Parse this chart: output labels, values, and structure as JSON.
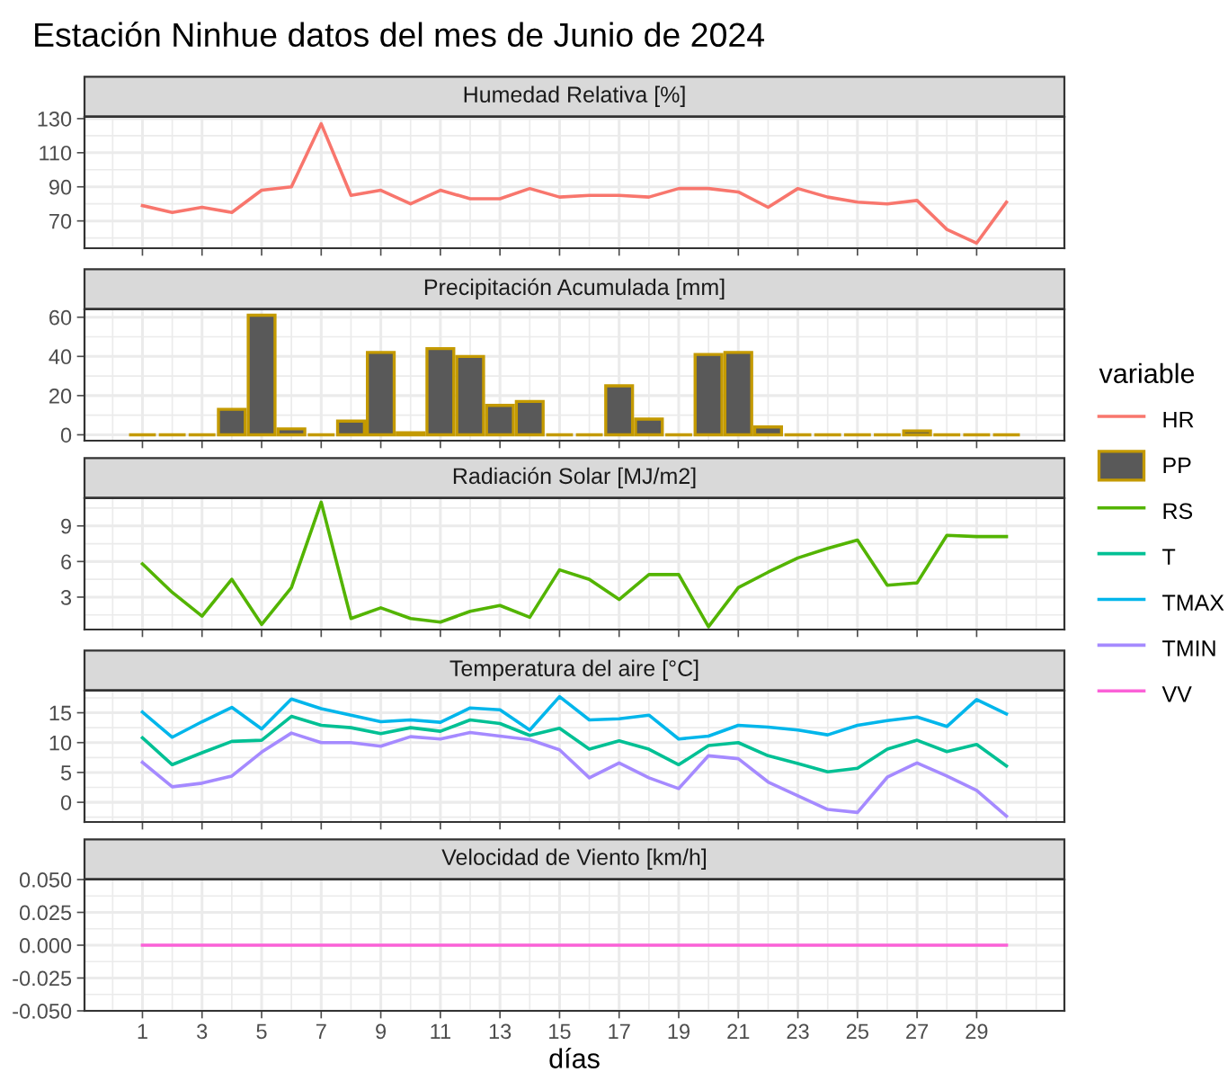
{
  "chart_data": [
    {
      "type": "line",
      "title": "Estación Ninhue datos del mes de Junio de 2024",
      "subtitle": "Humedad Relativa [%]",
      "legend": "right",
      "legend_title": "variable",
      "grid": true,
      "tick_labels": "y",
      "x": [
        1,
        2,
        3,
        4,
        5,
        6,
        7,
        8,
        9,
        10,
        11,
        12,
        13,
        14,
        15,
        16,
        17,
        18,
        19,
        20,
        21,
        22,
        23,
        24,
        25,
        26,
        27,
        28,
        29,
        30
      ],
      "xlim": [
        -0.945,
        31.945
      ],
      "xticks": [
        1,
        3,
        5,
        7,
        9,
        11,
        13,
        15,
        17,
        19,
        21,
        23,
        25,
        27,
        29
      ],
      "ylim": [
        54,
        131
      ],
      "yticks": [
        70,
        90,
        110,
        130
      ],
      "series": [
        {
          "name": "HR",
          "color": "#f8766d",
          "values": [
            79,
            75,
            78,
            75,
            88,
            90,
            127,
            85,
            88,
            80,
            88,
            83,
            83,
            89,
            84,
            85,
            85,
            84,
            89,
            89,
            87,
            78,
            89,
            84,
            81,
            80,
            82,
            65,
            57,
            81
          ]
        }
      ]
    },
    {
      "type": "bar",
      "subtitle": "Precipitación Acumulada [mm]",
      "legend": "right",
      "grid": true,
      "tick_labels": "y",
      "x": [
        1,
        2,
        3,
        4,
        5,
        6,
        7,
        8,
        9,
        10,
        11,
        12,
        13,
        14,
        15,
        16,
        17,
        18,
        19,
        20,
        21,
        22,
        23,
        24,
        25,
        26,
        27,
        28,
        29,
        30
      ],
      "xlim": [
        -0.945,
        31.945
      ],
      "xticks": [
        1,
        3,
        5,
        7,
        9,
        11,
        13,
        15,
        17,
        19,
        21,
        23,
        25,
        27,
        29
      ],
      "ylim": [
        -3,
        64
      ],
      "yticks": [
        0,
        20,
        40,
        60
      ],
      "series": [
        {
          "name": "PP",
          "color": "#c49a00",
          "values": [
            0,
            0,
            0,
            13,
            61,
            3,
            0,
            7,
            42,
            1,
            44,
            40,
            15,
            17,
            0,
            0,
            25,
            8,
            0,
            41,
            42,
            4,
            0,
            0,
            0,
            0,
            2,
            0,
            0,
            0
          ]
        }
      ]
    },
    {
      "type": "line",
      "subtitle": "Radiación Solar [MJ/m2]",
      "legend": "right",
      "grid": true,
      "tick_labels": "y",
      "x": [
        1,
        2,
        3,
        4,
        5,
        6,
        7,
        8,
        9,
        10,
        11,
        12,
        13,
        14,
        15,
        16,
        17,
        18,
        19,
        20,
        21,
        22,
        23,
        24,
        25,
        26,
        27,
        28,
        29,
        30
      ],
      "xlim": [
        -0.945,
        31.945
      ],
      "xticks": [
        1,
        3,
        5,
        7,
        9,
        11,
        13,
        15,
        17,
        19,
        21,
        23,
        25,
        27,
        29
      ],
      "ylim": [
        0.27,
        11.33
      ],
      "yticks": [
        3,
        6,
        9
      ],
      "series": [
        {
          "name": "RS",
          "color": "#53b400",
          "values": [
            5.8,
            3.4,
            1.4,
            4.5,
            0.7,
            3.8,
            11,
            1.2,
            2.1,
            1.2,
            0.9,
            1.8,
            2.3,
            1.3,
            5.3,
            4.5,
            2.8,
            4.9,
            4.9,
            0.5,
            3.8,
            5.1,
            6.3,
            7.1,
            7.8,
            4.0,
            4.2,
            8.2,
            8.1,
            8.1
          ]
        }
      ]
    },
    {
      "type": "line",
      "subtitle": "Temperatura del aire [°C]",
      "legend": "right",
      "grid": true,
      "tick_labels": "y",
      "x": [
        1,
        2,
        3,
        4,
        5,
        6,
        7,
        8,
        9,
        10,
        11,
        12,
        13,
        14,
        15,
        16,
        17,
        18,
        19,
        20,
        21,
        22,
        23,
        24,
        25,
        26,
        27,
        28,
        29,
        30
      ],
      "xlim": [
        -0.945,
        31.945
      ],
      "xticks": [
        1,
        3,
        5,
        7,
        9,
        11,
        13,
        15,
        17,
        19,
        21,
        23,
        25,
        27,
        29
      ],
      "ylim": [
        -3.3,
        18.7
      ],
      "yticks": [
        0,
        5,
        10,
        15
      ],
      "series": [
        {
          "name": "T",
          "color": "#00c094",
          "values": [
            10.8,
            6.3,
            8.3,
            10.2,
            10.4,
            14.4,
            12.9,
            12.5,
            11.5,
            12.5,
            11.9,
            13.8,
            13.2,
            11.2,
            12.4,
            8.9,
            10.3,
            8.9,
            6.3,
            9.5,
            10,
            7.8,
            6.5,
            5.1,
            5.7,
            8.9,
            10.4,
            8.5,
            9.7,
            6.1
          ]
        },
        {
          "name": "TMAX",
          "color": "#00b6eb",
          "values": [
            15.1,
            10.9,
            13.5,
            15.9,
            12.3,
            17.3,
            15.7,
            14.6,
            13.5,
            13.8,
            13.4,
            15.8,
            15.5,
            12.1,
            17.7,
            13.8,
            14,
            14.6,
            10.6,
            11.1,
            12.9,
            12.6,
            12.1,
            11.3,
            12.9,
            13.7,
            14.3,
            12.7,
            17.2,
            14.8
          ]
        },
        {
          "name": "TMIN",
          "color": "#a58aff",
          "values": [
            6.7,
            2.6,
            3.2,
            4.4,
            8.4,
            11.6,
            10,
            10,
            9.4,
            11,
            10.6,
            11.7,
            11.1,
            10.5,
            8.8,
            4.1,
            6.6,
            4.1,
            2.3,
            7.8,
            7.3,
            3.4,
            1.1,
            -1.2,
            -1.7,
            4.2,
            6.6,
            4.4,
            2,
            -2.3
          ]
        }
      ]
    },
    {
      "type": "line",
      "subtitle": "Velocidad de Viento [km/h]",
      "xlabel": "días",
      "legend": "right",
      "grid": true,
      "x": [
        1,
        2,
        3,
        4,
        5,
        6,
        7,
        8,
        9,
        10,
        11,
        12,
        13,
        14,
        15,
        16,
        17,
        18,
        19,
        20,
        21,
        22,
        23,
        24,
        25,
        26,
        27,
        28,
        29,
        30
      ],
      "xlim": [
        -0.945,
        31.945
      ],
      "xticks": [
        1,
        3,
        5,
        7,
        9,
        11,
        13,
        15,
        17,
        19,
        21,
        23,
        25,
        27,
        29
      ],
      "ylim": [
        -0.05,
        0.05
      ],
      "yticks": [
        {
          "value": -0.05,
          "label": "-0.050"
        },
        {
          "value": -0.025,
          "label": "-0.025"
        },
        {
          "value": 0,
          "label": "0.000"
        },
        {
          "value": 0.025,
          "label": "0.025"
        },
        {
          "value": 0.05,
          "label": "0.050"
        }
      ],
      "series": [
        {
          "name": "VV",
          "color": "#fb61d7",
          "values": [
            0,
            0,
            0,
            0,
            0,
            0,
            0,
            0,
            0,
            0,
            0,
            0,
            0,
            0,
            0,
            0,
            0,
            0,
            0,
            0,
            0,
            0,
            0,
            0,
            0,
            0,
            0,
            0,
            0,
            0
          ]
        }
      ]
    }
  ]
}
